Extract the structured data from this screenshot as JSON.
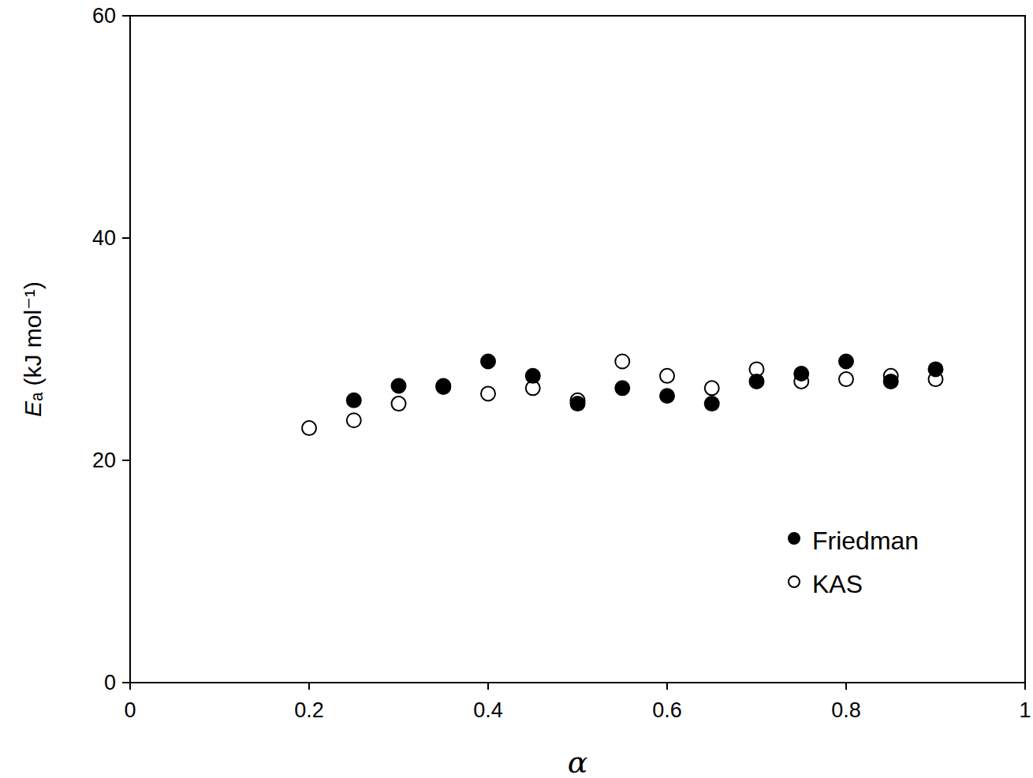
{
  "chart_data": {
    "type": "scatter",
    "x_label": "α",
    "y_label": "Eₐ (kJ mol⁻¹)",
    "x": [
      0.2,
      0.25,
      0.3,
      0.35,
      0.4,
      0.45,
      0.5,
      0.55,
      0.6,
      0.65,
      0.7,
      0.75,
      0.8,
      0.85,
      0.9
    ],
    "series": [
      {
        "name": "Friedman",
        "color": "#000000",
        "marker": "filled-circle",
        "values": [
          null,
          25.4,
          26.7,
          26.7,
          28.9,
          27.6,
          25.1,
          26.5,
          25.8,
          25.1,
          27.1,
          27.8,
          28.9,
          27.1,
          28.2
        ]
      },
      {
        "name": "KAS",
        "color": "#000000",
        "marker": "open-circle",
        "values": [
          22.9,
          23.6,
          25.1,
          26.6,
          26.0,
          26.5,
          25.4,
          28.9,
          27.6,
          26.5,
          28.2,
          27.1,
          27.3,
          27.6,
          27.3
        ]
      }
    ],
    "xlim": [
      0,
      1
    ],
    "ylim": [
      0,
      60
    ],
    "xticks": [
      0,
      0.2,
      0.4,
      0.6,
      0.8,
      1
    ],
    "yticks": [
      0,
      20,
      40,
      60
    ],
    "legend": "lower right",
    "grid": false
  }
}
